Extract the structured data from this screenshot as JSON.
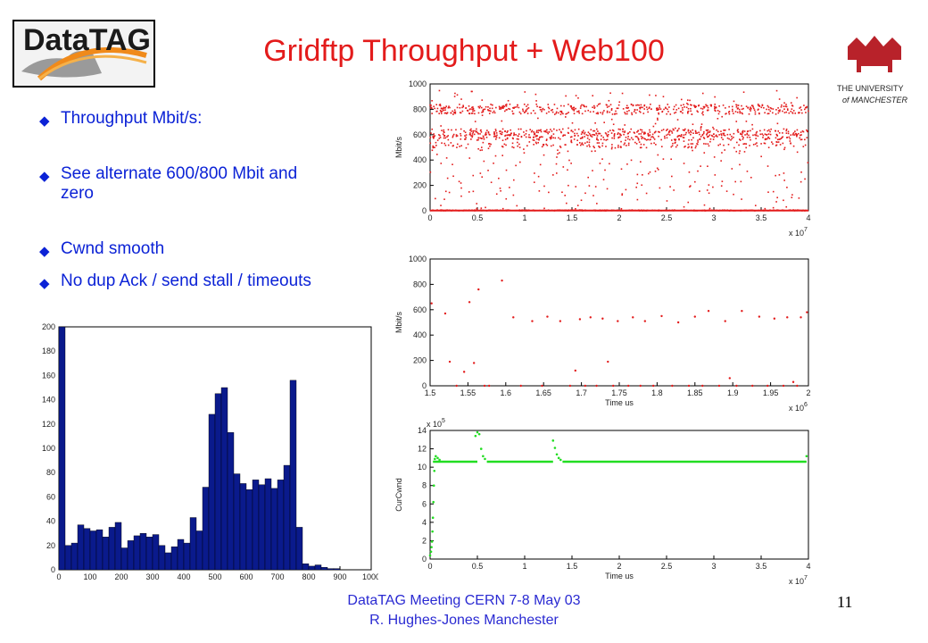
{
  "slide": {
    "title": "Gridftp Throughput + Web100",
    "bullets": [
      {
        "text": "Throughput Mbit/s:"
      },
      {
        "text": "See alternate 600/800 Mbit and zero"
      },
      {
        "text": "Cwnd smooth"
      },
      {
        "text": "No dup Ack / send stall / timeouts"
      }
    ],
    "footer_line1": "DataTAG Meeting CERN 7-8 May 03",
    "footer_line2": "R. Hughes-Jones  Manchester",
    "page_number": "11",
    "logo_left_text": "DataTAG",
    "logo_right_text_1": "THE UNIVERSITY",
    "logo_right_text_2": "of MANCHESTER",
    "bullet_icon": "diamond-bullet-icon",
    "colors": {
      "title": "#e31b1b",
      "bullets": "#0b22d6",
      "footer": "#2a2ad2",
      "throughput": "#e31b1b",
      "cwnd": "#22dd22",
      "histogram": "#0a1a8c"
    }
  },
  "chart_data": [
    {
      "type": "scatter",
      "xlim": [
        0,
        4
      ],
      "ylim": [
        0,
        1000
      ],
      "x_multiplier": "x 10",
      "x_exponent": "7",
      "ylabel": "Mbit/s",
      "xlabel": "",
      "xticks": [
        "0",
        "0.5",
        "1",
        "1.5",
        "2",
        "2.5",
        "3",
        "3.5",
        "4"
      ],
      "yticks": [
        "0",
        "200",
        "400",
        "600",
        "800",
        "1000"
      ],
      "color": "#e31b1b",
      "bands": [
        {
          "level": 800,
          "share": 0.25
        },
        {
          "level": 600,
          "share": 0.3
        },
        {
          "level": 520,
          "share": 0.1
        },
        {
          "level": 0,
          "share": 0.15
        },
        {
          "level": "spread",
          "share": 0.2
        }
      ],
      "count": 1800
    },
    {
      "type": "scatter",
      "xlim": [
        1.5,
        2
      ],
      "ylim": [
        0,
        1000
      ],
      "x_multiplier": "x 10",
      "x_exponent": "6",
      "ylabel": "Mbit/s",
      "xlabel": "Time us",
      "xticks": [
        "1.5",
        "1.55",
        "1.6",
        "1.65",
        "1.7",
        "1.75",
        "1.8",
        "1.85",
        "1.9",
        "1.95",
        "2"
      ],
      "yticks": [
        "0",
        "200",
        "400",
        "600",
        "800",
        "1000"
      ],
      "color": "#e31b1b",
      "points": [
        [
          1.502,
          650
        ],
        [
          1.52,
          570
        ],
        [
          1.526,
          190
        ],
        [
          1.535,
          0
        ],
        [
          1.545,
          110
        ],
        [
          1.552,
          660
        ],
        [
          1.558,
          180
        ],
        [
          1.564,
          760
        ],
        [
          1.572,
          0
        ],
        [
          1.578,
          0
        ],
        [
          1.595,
          830
        ],
        [
          1.61,
          540
        ],
        [
          1.62,
          0
        ],
        [
          1.635,
          510
        ],
        [
          1.648,
          0
        ],
        [
          1.655,
          545
        ],
        [
          1.672,
          510
        ],
        [
          1.685,
          0
        ],
        [
          1.692,
          120
        ],
        [
          1.698,
          525
        ],
        [
          1.705,
          0
        ],
        [
          1.712,
          540
        ],
        [
          1.72,
          0
        ],
        [
          1.728,
          530
        ],
        [
          1.735,
          190
        ],
        [
          1.742,
          0
        ],
        [
          1.748,
          510
        ],
        [
          1.762,
          0
        ],
        [
          1.768,
          540
        ],
        [
          1.778,
          0
        ],
        [
          1.784,
          510
        ],
        [
          1.795,
          0
        ],
        [
          1.806,
          550
        ],
        [
          1.82,
          0
        ],
        [
          1.828,
          500
        ],
        [
          1.842,
          0
        ],
        [
          1.85,
          545
        ],
        [
          1.86,
          0
        ],
        [
          1.868,
          590
        ],
        [
          1.882,
          0
        ],
        [
          1.89,
          510
        ],
        [
          1.896,
          60
        ],
        [
          1.905,
          0
        ],
        [
          1.912,
          590
        ],
        [
          1.926,
          0
        ],
        [
          1.935,
          545
        ],
        [
          1.946,
          0
        ],
        [
          1.955,
          530
        ],
        [
          1.967,
          0
        ],
        [
          1.972,
          540
        ],
        [
          1.98,
          30
        ],
        [
          1.985,
          0
        ],
        [
          1.99,
          540
        ],
        [
          1.998,
          580
        ]
      ]
    },
    {
      "type": "scatter",
      "xlim": [
        0,
        4
      ],
      "ylim": [
        0,
        14
      ],
      "y_multiplier": "x 10",
      "y_exponent": "5",
      "x_multiplier": "x 10",
      "x_exponent": "7",
      "ylabel": "CurCwnd",
      "xlabel": "Time us",
      "xticks": [
        "0",
        "0.5",
        "1",
        "1.5",
        "2",
        "2.5",
        "3",
        "3.5",
        "4"
      ],
      "yticks": [
        "0",
        "2",
        "4",
        "6",
        "8",
        "10",
        "12",
        "14"
      ],
      "color": "#22dd22",
      "segments": [
        {
          "x0": 0.03,
          "x1": 0.5,
          "y": 10.6
        },
        {
          "x0": 0.6,
          "x1": 1.3,
          "y": 10.6
        },
        {
          "x0": 1.4,
          "x1": 3.98,
          "y": 10.6
        }
      ],
      "points": [
        [
          0.0,
          0.4
        ],
        [
          0.01,
          0.8
        ],
        [
          0.015,
          1.3
        ],
        [
          0.02,
          1.9
        ],
        [
          0.025,
          3.0
        ],
        [
          0.03,
          4.5
        ],
        [
          0.035,
          6.2
        ],
        [
          0.04,
          8.0
        ],
        [
          0.045,
          9.6
        ],
        [
          0.05,
          10.9
        ],
        [
          0.06,
          11.2
        ],
        [
          0.08,
          11.0
        ],
        [
          0.1,
          10.8
        ],
        [
          0.48,
          13.4
        ],
        [
          0.5,
          13.8
        ],
        [
          0.52,
          13.6
        ],
        [
          0.54,
          12.0
        ],
        [
          0.56,
          11.2
        ],
        [
          0.58,
          10.9
        ],
        [
          1.3,
          12.9
        ],
        [
          1.32,
          12.1
        ],
        [
          1.34,
          11.4
        ],
        [
          1.36,
          11.0
        ],
        [
          1.38,
          10.8
        ],
        [
          3.98,
          11.2
        ]
      ]
    },
    {
      "type": "bar",
      "xlim": [
        0,
        1000
      ],
      "ylim": [
        0,
        200
      ],
      "xticks": [
        "0",
        "100",
        "200",
        "300",
        "400",
        "500",
        "600",
        "700",
        "800",
        "900",
        "1000"
      ],
      "yticks": [
        "0",
        "20",
        "40",
        "60",
        "80",
        "100",
        "120",
        "140",
        "160",
        "180",
        "200"
      ],
      "bin_width": 20,
      "bin_start": 0,
      "color": "#0a1a8c",
      "values": [
        200,
        20,
        22,
        37,
        34,
        32,
        33,
        27,
        35,
        39,
        18,
        24,
        28,
        30,
        27,
        29,
        20,
        14,
        19,
        25,
        22,
        43,
        32,
        68,
        128,
        145,
        150,
        113,
        79,
        71,
        66,
        74,
        70,
        75,
        67,
        74,
        86,
        156,
        35,
        5,
        3,
        4,
        2,
        1,
        1,
        0
      ]
    }
  ]
}
